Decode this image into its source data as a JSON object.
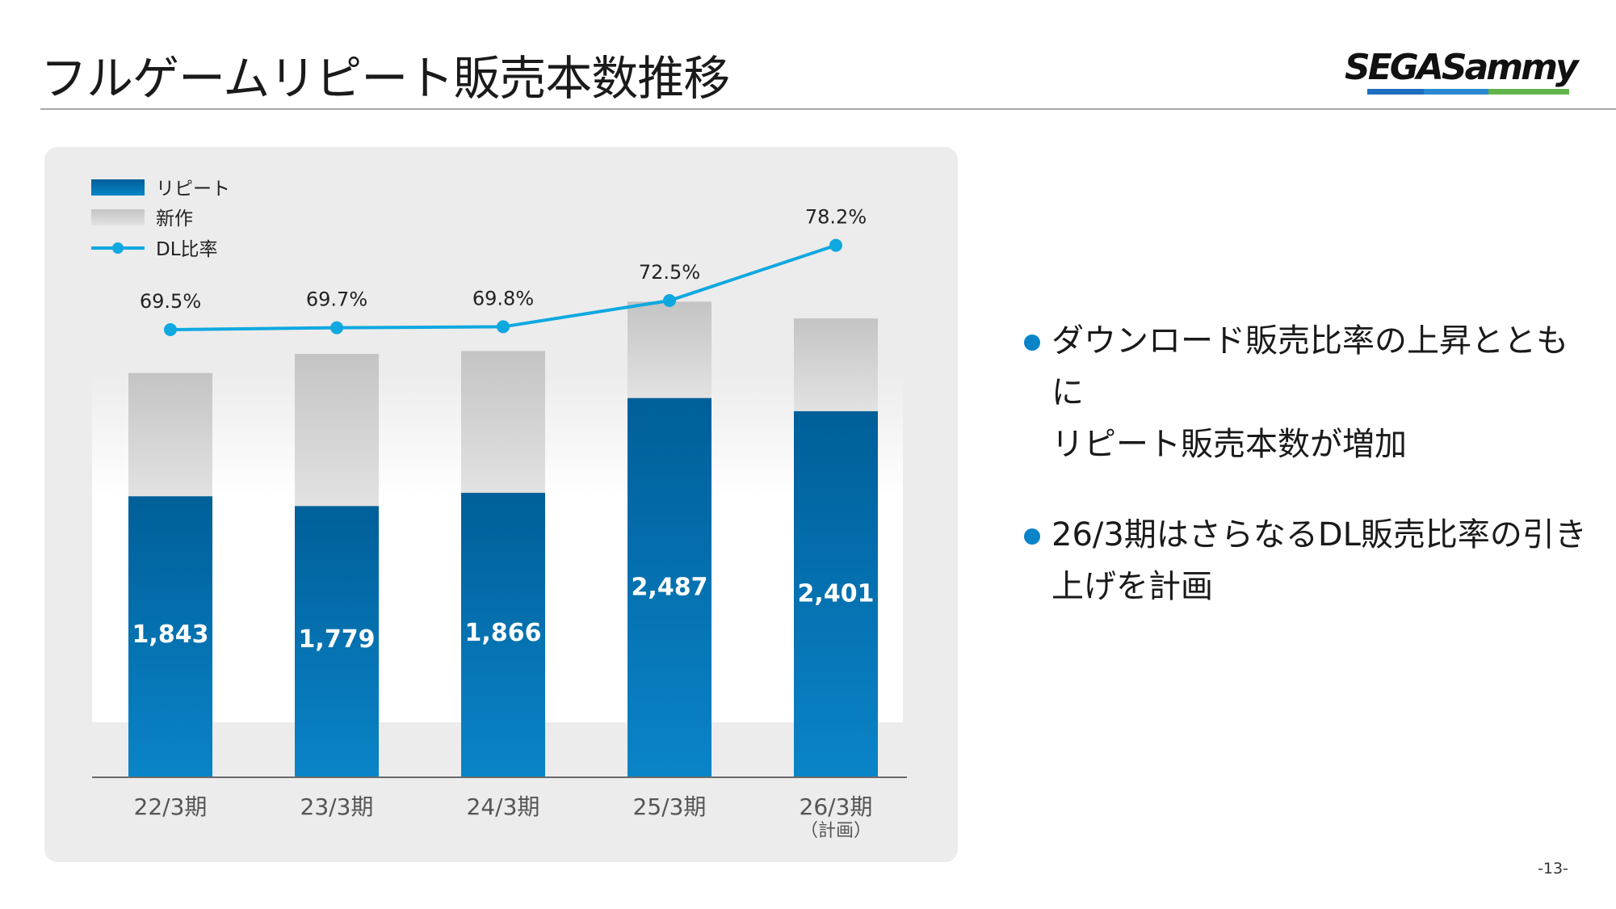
{
  "header": {
    "title": "フルゲームリピート販売本数推移"
  },
  "logo": {
    "text": "SEGASammy",
    "bar_colors": [
      "#1f6fc0",
      "#2a8ad0",
      "#62b34a"
    ]
  },
  "colors": {
    "repeat_top": "#005f99",
    "repeat_bottom": "#0a84c8",
    "new_top": "#c4c4c4",
    "new_bottom": "#e2e2e2",
    "line": "#10a8e0",
    "axis": "#6a6a6a",
    "panel": "#ececec"
  },
  "chart_data": {
    "type": "bar",
    "stacked": true,
    "categories": [
      "22/3期",
      "23/3期",
      "24/3期",
      "25/3期",
      "26/3期"
    ],
    "category_notes": [
      "",
      "",
      "",
      "",
      "（計画）"
    ],
    "series": [
      {
        "name": "リピート",
        "type": "bar",
        "values": [
          1843,
          1779,
          1866,
          2487,
          2401
        ],
        "labels": [
          "1,843",
          "1,779",
          "1,866",
          "2,487",
          "2,401"
        ]
      },
      {
        "name": "新作",
        "type": "bar",
        "values": [
          808,
          997,
          929,
          632,
          608
        ]
      },
      {
        "name": "DL比率",
        "type": "line",
        "values": [
          69.5,
          69.7,
          69.8,
          72.5,
          78.2
        ],
        "labels": [
          "69.5%",
          "69.7%",
          "69.8%",
          "72.5%",
          "78.2%"
        ]
      }
    ],
    "ylim": [
      0,
      3200
    ],
    "line_ylim": [
      50,
      80
    ],
    "legend": "top-left",
    "grid": false
  },
  "bullets": [
    {
      "lines": [
        "ダウンロード販売比率の上昇とともに",
        "リピート販売本数が増加"
      ]
    },
    {
      "lines": [
        "26/3期はさらなるDL販売比率の引き",
        "上げを計画"
      ]
    }
  ],
  "page": {
    "number": "-13-"
  }
}
